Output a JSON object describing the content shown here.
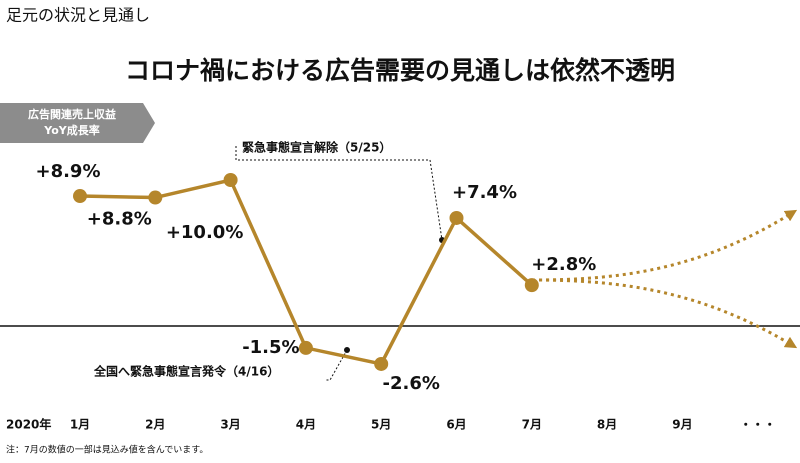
{
  "header": {
    "section": "足元の状況と見通し",
    "title": "コロナ禍における広告需要の見通しは依然不透明"
  },
  "chart_data": {
    "type": "line",
    "axis_label": [
      "広告関連売上収益",
      "YoY成長率"
    ],
    "year_label": "2020年",
    "categories": [
      "1月",
      "2月",
      "3月",
      "4月",
      "5月",
      "6月",
      "7月",
      "8月",
      "9月",
      "・・・"
    ],
    "values": [
      8.9,
      8.8,
      10.0,
      -1.5,
      -2.6,
      7.4,
      2.8,
      null,
      null,
      null
    ],
    "value_labels": [
      "+8.9%",
      "+8.8%",
      "+10.0%",
      "-1.5%",
      "-2.6%",
      "+7.4%",
      "+2.8%",
      null,
      null,
      null
    ],
    "color": "#b5862b",
    "ylim": [
      -5,
      11
    ],
    "annotations": [
      "緊急事態宣言解除（5/25）",
      "全国へ緊急事態宣言発令（4/16）"
    ],
    "note": "注：7月の数値の一部は見込み値を含んでいます。"
  }
}
